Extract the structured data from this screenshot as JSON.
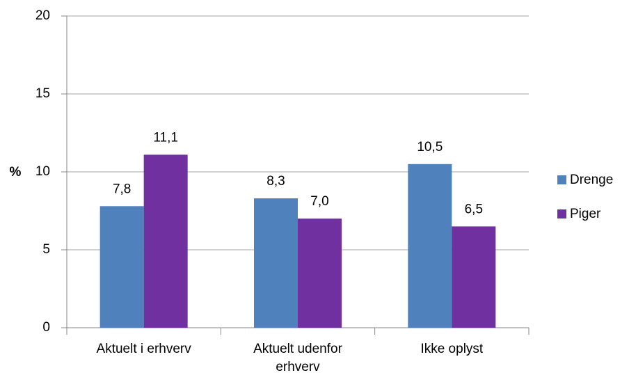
{
  "chart_data": {
    "type": "bar",
    "ylabel": "%",
    "categories": [
      "Aktuelt i erhverv",
      "Aktuelt udenfor erhverv",
      "Ikke oplyst"
    ],
    "series": [
      {
        "name": "Drenge",
        "color": "#4f81bd",
        "values": [
          7.8,
          8.3,
          10.5
        ],
        "value_labels": [
          "7,8",
          "8,3",
          "10,5"
        ]
      },
      {
        "name": "Piger",
        "color": "#7030a0",
        "values": [
          11.1,
          7.0,
          6.5
        ],
        "value_labels": [
          "11,1",
          "7,0",
          "6,5"
        ]
      }
    ],
    "ylim": [
      0,
      20
    ],
    "yticks": [
      0,
      5,
      10,
      15,
      20
    ],
    "grid": true,
    "legend": "right"
  }
}
